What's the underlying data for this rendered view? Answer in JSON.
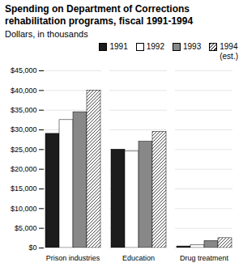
{
  "chart_data": {
    "type": "bar",
    "title": "Spending on Department of Corrections\nrehabilitation programs, fiscal 1991-1994",
    "subtitle": "Dollars, in thousands",
    "categories": [
      "Prison industries",
      "Education",
      "Drug treatment"
    ],
    "series": [
      {
        "name": "1991",
        "color": "#1c1c1c",
        "values": [
          29000,
          25000,
          400
        ]
      },
      {
        "name": "1992",
        "color": "#ffffff",
        "values": [
          32500,
          24500,
          700
        ]
      },
      {
        "name": "1993",
        "color": "#888888",
        "values": [
          34500,
          27000,
          1800
        ]
      },
      {
        "name": "1994\n(est.)",
        "color": "#ffffff",
        "values": [
          40000,
          29500,
          2500
        ]
      }
    ],
    "ylim": [
      0,
      45000
    ],
    "yticks": [
      {
        "value": 0,
        "label": "$0"
      },
      {
        "value": 5000,
        "label": "$5,000"
      },
      {
        "value": 10000,
        "label": "$10,000"
      },
      {
        "value": 15000,
        "label": "$15,000"
      },
      {
        "value": 20000,
        "label": "$20,000"
      },
      {
        "value": 25000,
        "label": "$25,000"
      },
      {
        "value": 30000,
        "label": "$30,000"
      },
      {
        "value": 35000,
        "label": "$35,000"
      },
      {
        "value": 40000,
        "label": "$40,000"
      },
      {
        "value": 45000,
        "label": "$45,000"
      }
    ],
    "grid": true,
    "legend": "upper right"
  }
}
